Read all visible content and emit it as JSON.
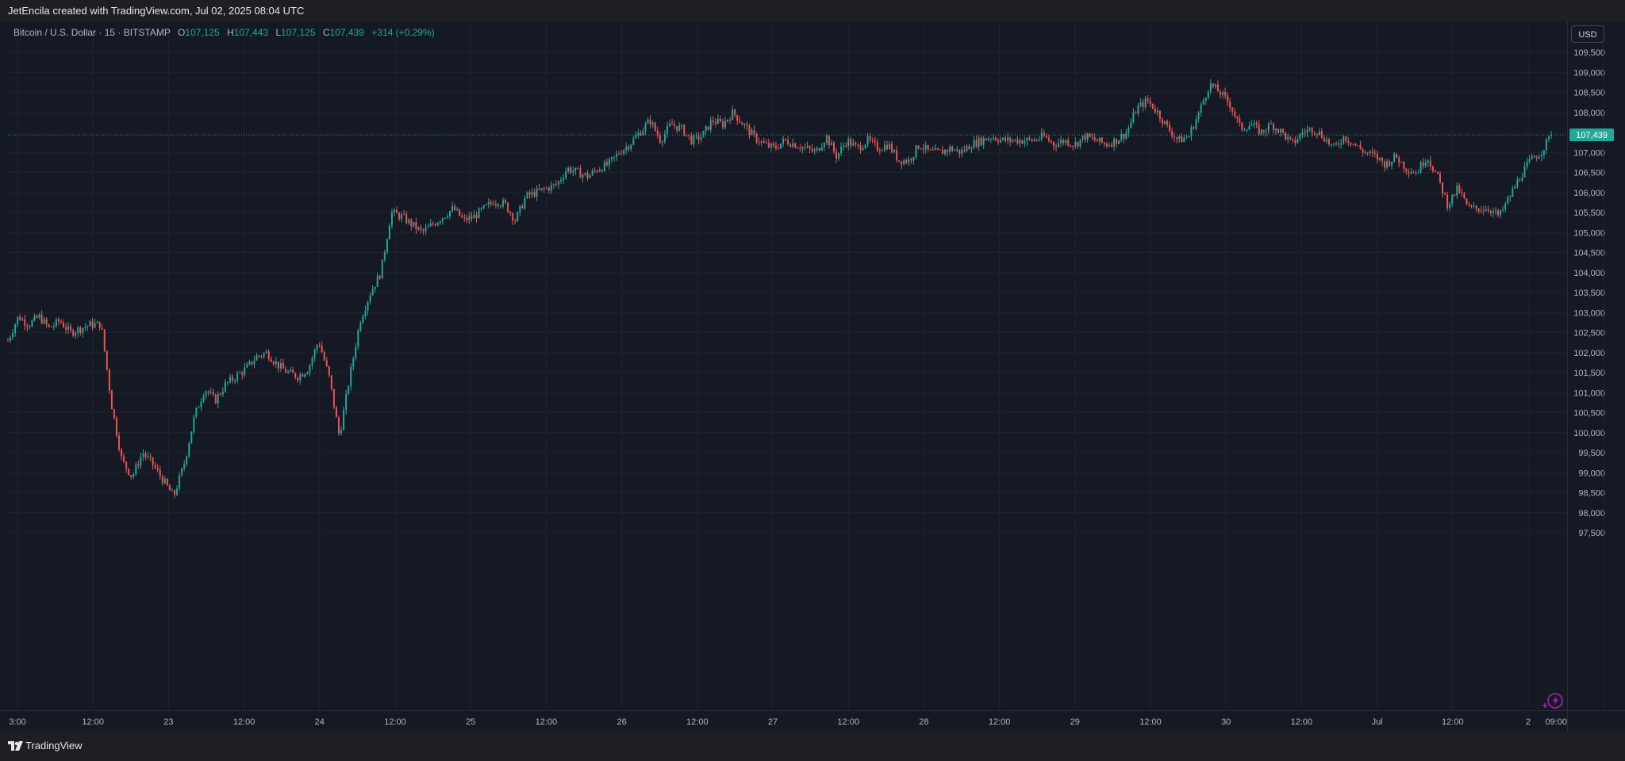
{
  "header": {
    "attribution": "JetEncila created with TradingView.com, Jul 02, 2025 08:04 UTC"
  },
  "legend": {
    "symbol": "Bitcoin / U.S. Dollar · 15 · BITSTAMP",
    "open_label": "O",
    "open": "107,125",
    "high_label": "H",
    "high": "107,443",
    "low_label": "L",
    "low": "107,125",
    "close_label": "C",
    "close": "107,439",
    "change": "+314 (+0.29%)"
  },
  "currency": "USD",
  "footer": {
    "brand": "TradingView"
  },
  "chart_data": {
    "type": "candlestick",
    "title": "Bitcoin / U.S. Dollar · 15 · BITSTAMP",
    "xlabel": "",
    "ylabel": "",
    "ylim": [
      97250,
      109750
    ],
    "last_price": 107439,
    "last_price_label": "107,439",
    "grid": true,
    "y_ticks": [
      "109,500",
      "109,000",
      "108,500",
      "108,000",
      "107,500",
      "107,000",
      "106,500",
      "106,000",
      "105,500",
      "105,000",
      "104,500",
      "104,000",
      "103,500",
      "103,000",
      "102,500",
      "102,000",
      "101,500",
      "101,000",
      "100,500",
      "100,000",
      "99,500",
      "99,000",
      "98,500",
      "98,000",
      "97,500"
    ],
    "x_ticks": [
      "3:00",
      "12:00",
      "23",
      "12:00",
      "24",
      "12:00",
      "25",
      "12:00",
      "26",
      "12:00",
      "27",
      "12:00",
      "28",
      "12:00",
      "29",
      "12:00",
      "30",
      "12:00",
      "Jul",
      "12:00",
      "2",
      "09:00"
    ],
    "price_path": [
      [
        0,
        102300
      ],
      [
        1,
        102900
      ],
      [
        2,
        102700
      ],
      [
        3,
        102900
      ],
      [
        4,
        102600
      ],
      [
        5,
        102800
      ],
      [
        6,
        102500
      ],
      [
        7,
        102600
      ],
      [
        8,
        102700
      ],
      [
        9,
        102700
      ],
      [
        10,
        100700
      ],
      [
        11,
        99300
      ],
      [
        12,
        98900
      ],
      [
        13,
        99500
      ],
      [
        14,
        99200
      ],
      [
        15,
        98800
      ],
      [
        16,
        98400
      ],
      [
        17,
        99200
      ],
      [
        18,
        100400
      ],
      [
        19,
        101100
      ],
      [
        20,
        100800
      ],
      [
        21,
        101200
      ],
      [
        22,
        101400
      ],
      [
        23,
        101600
      ],
      [
        24,
        101900
      ],
      [
        25,
        102000
      ],
      [
        26,
        101700
      ],
      [
        27,
        101500
      ],
      [
        28,
        101400
      ],
      [
        29,
        101600
      ],
      [
        30,
        102300
      ],
      [
        31,
        101400
      ],
      [
        32,
        99900
      ],
      [
        33,
        101400
      ],
      [
        34,
        102800
      ],
      [
        35,
        103500
      ],
      [
        36,
        104000
      ],
      [
        37,
        105500
      ],
      [
        38,
        105400
      ],
      [
        39,
        105200
      ],
      [
        40,
        105000
      ],
      [
        41,
        105200
      ],
      [
        42,
        105400
      ],
      [
        43,
        105600
      ],
      [
        44,
        105300
      ],
      [
        45,
        105400
      ],
      [
        46,
        105600
      ],
      [
        47,
        105800
      ],
      [
        48,
        105700
      ],
      [
        49,
        105300
      ],
      [
        50,
        105900
      ],
      [
        51,
        106000
      ],
      [
        52,
        106100
      ],
      [
        53,
        106200
      ],
      [
        54,
        106600
      ],
      [
        55,
        106500
      ],
      [
        56,
        106400
      ],
      [
        57,
        106600
      ],
      [
        58,
        106700
      ],
      [
        59,
        107000
      ],
      [
        60,
        107200
      ],
      [
        61,
        107500
      ],
      [
        62,
        107800
      ],
      [
        63,
        107300
      ],
      [
        64,
        107700
      ],
      [
        65,
        107600
      ],
      [
        66,
        107300
      ],
      [
        67,
        107400
      ],
      [
        68,
        107800
      ],
      [
        69,
        107700
      ],
      [
        70,
        108000
      ],
      [
        71,
        107700
      ],
      [
        72,
        107400
      ],
      [
        73,
        107200
      ],
      [
        74,
        107100
      ],
      [
        75,
        107300
      ],
      [
        76,
        107200
      ],
      [
        77,
        107100
      ],
      [
        78,
        107000
      ],
      [
        79,
        107400
      ],
      [
        80,
        106900
      ],
      [
        81,
        107300
      ],
      [
        82,
        107100
      ],
      [
        83,
        107300
      ],
      [
        84,
        107100
      ],
      [
        85,
        107200
      ],
      [
        86,
        106800
      ],
      [
        87,
        106800
      ],
      [
        88,
        107200
      ],
      [
        89,
        107000
      ],
      [
        90,
        107000
      ],
      [
        91,
        107100
      ],
      [
        92,
        107000
      ],
      [
        93,
        107200
      ],
      [
        94,
        107300
      ],
      [
        95,
        107400
      ],
      [
        96,
        107300
      ],
      [
        97,
        107300
      ],
      [
        98,
        107300
      ],
      [
        99,
        107300
      ],
      [
        100,
        107400
      ],
      [
        101,
        107200
      ],
      [
        102,
        107300
      ],
      [
        103,
        107200
      ],
      [
        104,
        107400
      ],
      [
        105,
        107300
      ],
      [
        106,
        107200
      ],
      [
        107,
        107300
      ],
      [
        108,
        107500
      ],
      [
        109,
        108100
      ],
      [
        110,
        108300
      ],
      [
        111,
        108000
      ],
      [
        112,
        107600
      ],
      [
        113,
        107300
      ],
      [
        114,
        107400
      ],
      [
        115,
        108000
      ],
      [
        116,
        108700
      ],
      [
        117,
        108500
      ],
      [
        118,
        108200
      ],
      [
        119,
        107600
      ],
      [
        120,
        107700
      ],
      [
        121,
        107500
      ],
      [
        122,
        107700
      ],
      [
        123,
        107500
      ],
      [
        124,
        107200
      ],
      [
        125,
        107500
      ],
      [
        126,
        107600
      ],
      [
        127,
        107400
      ],
      [
        128,
        107100
      ],
      [
        129,
        107400
      ],
      [
        130,
        107200
      ],
      [
        131,
        107000
      ],
      [
        132,
        106900
      ],
      [
        133,
        106700
      ],
      [
        134,
        106900
      ],
      [
        135,
        106600
      ],
      [
        136,
        106500
      ],
      [
        137,
        106900
      ],
      [
        138,
        106400
      ],
      [
        139,
        105700
      ],
      [
        140,
        106100
      ],
      [
        141,
        105600
      ],
      [
        142,
        105600
      ],
      [
        143,
        105600
      ],
      [
        144,
        105400
      ],
      [
        145,
        105900
      ],
      [
        146,
        106400
      ],
      [
        147,
        106800
      ],
      [
        148,
        107000
      ],
      [
        149,
        107439
      ]
    ]
  }
}
